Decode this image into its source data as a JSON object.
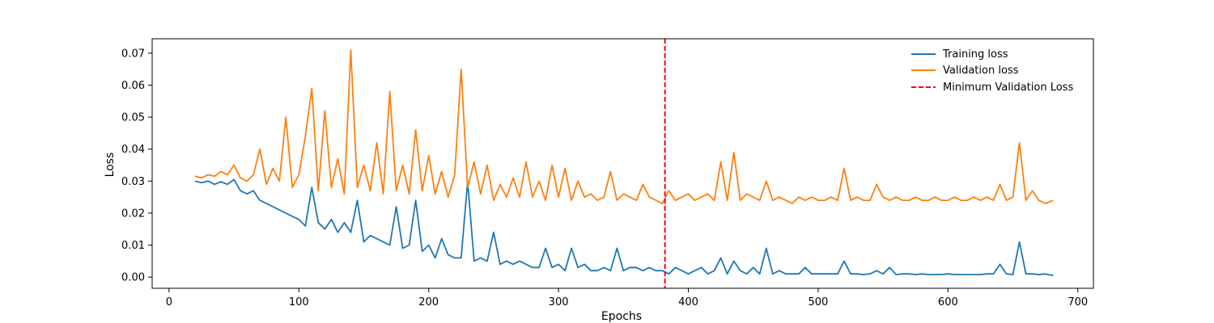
{
  "chart_data": {
    "type": "line",
    "title": "",
    "xlabel": "Epochs",
    "ylabel": "Loss",
    "xlim": [
      -13,
      712
    ],
    "ylim": [
      -0.0035,
      0.0745
    ],
    "xticks": [
      "0",
      "100",
      "200",
      "300",
      "400",
      "500",
      "600",
      "700"
    ],
    "yticks": [
      "0.00",
      "0.01",
      "0.02",
      "0.03",
      "0.04",
      "0.05",
      "0.06",
      "0.07"
    ],
    "grid": false,
    "legend_position": "top-right",
    "colors": {
      "training": "#1f77b4",
      "validation": "#ff7f0e",
      "min_line": "#ff0000"
    },
    "series": [
      {
        "name": "Training loss",
        "x": [
          20,
          25,
          30,
          35,
          40,
          45,
          50,
          55,
          60,
          65,
          70,
          75,
          80,
          85,
          90,
          95,
          100,
          105,
          110,
          115,
          120,
          125,
          130,
          135,
          140,
          145,
          150,
          155,
          160,
          165,
          170,
          175,
          180,
          185,
          190,
          195,
          200,
          205,
          210,
          215,
          220,
          225,
          230,
          235,
          240,
          245,
          250,
          255,
          260,
          265,
          270,
          275,
          280,
          285,
          290,
          295,
          300,
          305,
          310,
          315,
          320,
          325,
          330,
          335,
          340,
          345,
          350,
          355,
          360,
          365,
          370,
          375,
          380,
          385,
          390,
          395,
          400,
          405,
          410,
          415,
          420,
          425,
          430,
          435,
          440,
          445,
          450,
          455,
          460,
          465,
          470,
          475,
          480,
          485,
          490,
          495,
          500,
          505,
          510,
          515,
          520,
          525,
          530,
          535,
          540,
          545,
          550,
          555,
          560,
          565,
          570,
          575,
          580,
          585,
          590,
          595,
          600,
          605,
          610,
          615,
          620,
          625,
          630,
          635,
          640,
          645,
          650,
          655,
          660,
          665,
          670,
          675,
          681
        ],
        "values": [
          0.03,
          0.0295,
          0.03,
          0.029,
          0.0298,
          0.029,
          0.0305,
          0.027,
          0.026,
          0.027,
          0.024,
          0.023,
          0.022,
          0.021,
          0.02,
          0.019,
          0.018,
          0.016,
          0.028,
          0.017,
          0.015,
          0.018,
          0.014,
          0.017,
          0.014,
          0.024,
          0.011,
          0.013,
          0.012,
          0.011,
          0.01,
          0.022,
          0.009,
          0.01,
          0.024,
          0.008,
          0.01,
          0.006,
          0.012,
          0.007,
          0.006,
          0.006,
          0.03,
          0.005,
          0.006,
          0.005,
          0.014,
          0.004,
          0.005,
          0.004,
          0.005,
          0.004,
          0.003,
          0.003,
          0.009,
          0.003,
          0.004,
          0.002,
          0.009,
          0.003,
          0.004,
          0.002,
          0.002,
          0.003,
          0.002,
          0.009,
          0.002,
          0.003,
          0.003,
          0.002,
          0.003,
          0.002,
          0.002,
          0.001,
          0.003,
          0.002,
          0.001,
          0.002,
          0.003,
          0.001,
          0.002,
          0.006,
          0.001,
          0.005,
          0.002,
          0.001,
          0.003,
          0.001,
          0.009,
          0.001,
          0.002,
          0.001,
          0.001,
          0.001,
          0.003,
          0.001,
          0.001,
          0.001,
          0.001,
          0.001,
          0.005,
          0.001,
          0.001,
          0.0008,
          0.001,
          0.002,
          0.001,
          0.003,
          0.0008,
          0.001,
          0.001,
          0.0008,
          0.001,
          0.0008,
          0.0008,
          0.0008,
          0.001,
          0.0008,
          0.0008,
          0.0008,
          0.0008,
          0.0008,
          0.001,
          0.001,
          0.004,
          0.001,
          0.0008,
          0.011,
          0.001,
          0.001,
          0.0008,
          0.001,
          0.0005
        ]
      },
      {
        "name": "Validation loss",
        "x": [
          20,
          25,
          30,
          35,
          40,
          45,
          50,
          55,
          60,
          65,
          70,
          75,
          80,
          85,
          90,
          95,
          100,
          105,
          110,
          115,
          120,
          125,
          130,
          135,
          140,
          145,
          150,
          155,
          160,
          165,
          170,
          175,
          180,
          185,
          190,
          195,
          200,
          205,
          210,
          215,
          220,
          225,
          230,
          235,
          240,
          245,
          250,
          255,
          260,
          265,
          270,
          275,
          280,
          285,
          290,
          295,
          300,
          305,
          310,
          315,
          320,
          325,
          330,
          335,
          340,
          345,
          350,
          355,
          360,
          365,
          370,
          375,
          380,
          385,
          390,
          395,
          400,
          405,
          410,
          415,
          420,
          425,
          430,
          435,
          440,
          445,
          450,
          455,
          460,
          465,
          470,
          475,
          480,
          485,
          490,
          495,
          500,
          505,
          510,
          515,
          520,
          525,
          530,
          535,
          540,
          545,
          550,
          555,
          560,
          565,
          570,
          575,
          580,
          585,
          590,
          595,
          600,
          605,
          610,
          615,
          620,
          625,
          630,
          635,
          640,
          645,
          650,
          655,
          660,
          665,
          670,
          675,
          681
        ],
        "values": [
          0.0315,
          0.031,
          0.032,
          0.0315,
          0.033,
          0.032,
          0.035,
          0.031,
          0.03,
          0.032,
          0.04,
          0.029,
          0.034,
          0.03,
          0.05,
          0.028,
          0.032,
          0.044,
          0.059,
          0.027,
          0.052,
          0.028,
          0.037,
          0.026,
          0.071,
          0.028,
          0.035,
          0.027,
          0.042,
          0.026,
          0.058,
          0.027,
          0.035,
          0.026,
          0.046,
          0.027,
          0.038,
          0.026,
          0.033,
          0.025,
          0.032,
          0.065,
          0.028,
          0.036,
          0.026,
          0.035,
          0.024,
          0.029,
          0.025,
          0.031,
          0.025,
          0.036,
          0.025,
          0.03,
          0.024,
          0.035,
          0.025,
          0.034,
          0.024,
          0.03,
          0.025,
          0.026,
          0.024,
          0.025,
          0.033,
          0.024,
          0.026,
          0.025,
          0.024,
          0.029,
          0.025,
          0.024,
          0.023,
          0.027,
          0.024,
          0.025,
          0.026,
          0.024,
          0.025,
          0.026,
          0.024,
          0.036,
          0.024,
          0.039,
          0.024,
          0.026,
          0.025,
          0.024,
          0.03,
          0.024,
          0.025,
          0.024,
          0.023,
          0.025,
          0.024,
          0.025,
          0.024,
          0.024,
          0.025,
          0.024,
          0.034,
          0.024,
          0.025,
          0.024,
          0.024,
          0.029,
          0.025,
          0.024,
          0.025,
          0.024,
          0.024,
          0.025,
          0.024,
          0.024,
          0.025,
          0.024,
          0.024,
          0.025,
          0.024,
          0.024,
          0.025,
          0.024,
          0.025,
          0.024,
          0.029,
          0.024,
          0.025,
          0.042,
          0.024,
          0.027,
          0.024,
          0.023,
          0.024
        ]
      }
    ],
    "vline": {
      "name": "Minimum Validation Loss",
      "x": 382
    }
  }
}
